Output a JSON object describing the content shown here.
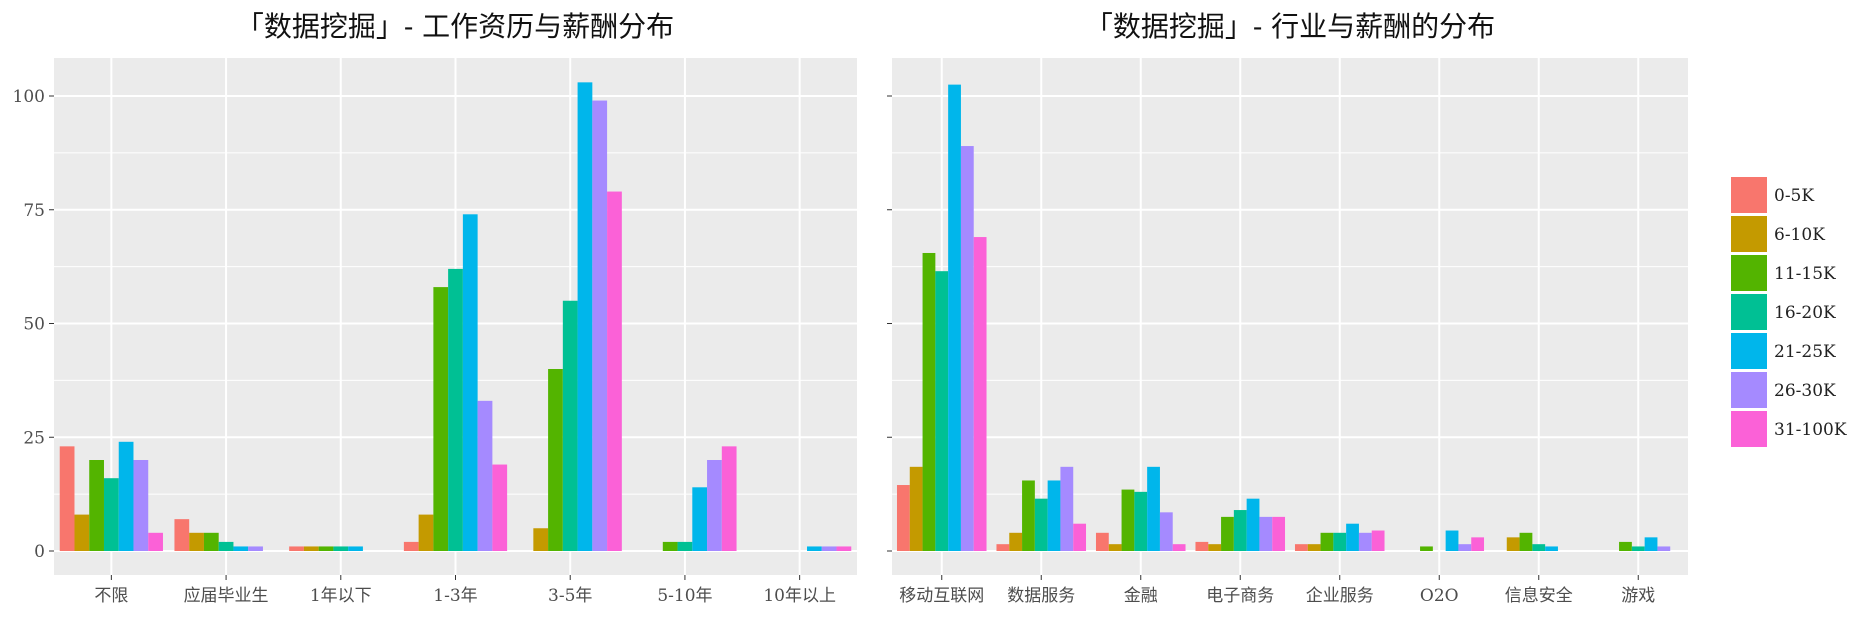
{
  "chart_data": [
    {
      "type": "bar",
      "title": "「数据挖掘」- 工作资历与薪酬分布",
      "xlabel": "",
      "ylabel": "",
      "ylim": [
        0,
        107
      ],
      "yticks": [
        0,
        25,
        50,
        75,
        100
      ],
      "grid": true,
      "categories": [
        "不限",
        "应届毕业生",
        "1年以下",
        "1-3年",
        "3-5年",
        "5-10年",
        "10年以上"
      ],
      "series": [
        {
          "name": "0-5K",
          "values": [
            23,
            7,
            1,
            2,
            0,
            0,
            0
          ]
        },
        {
          "name": "6-10K",
          "values": [
            8,
            4,
            1,
            8,
            5,
            0,
            0
          ]
        },
        {
          "name": "11-15K",
          "values": [
            20,
            4,
            1,
            58,
            40,
            2,
            0
          ]
        },
        {
          "name": "16-20K",
          "values": [
            16,
            2,
            1,
            62,
            55,
            2,
            0
          ]
        },
        {
          "name": "21-25K",
          "values": [
            24,
            1,
            1,
            74,
            103,
            14,
            1
          ]
        },
        {
          "name": "26-30K",
          "values": [
            20,
            1,
            0,
            33,
            99,
            20,
            1
          ]
        },
        {
          "name": "31-100K",
          "values": [
            4,
            0,
            0,
            19,
            79,
            23,
            1
          ]
        }
      ]
    },
    {
      "type": "bar",
      "title": "「数据挖掘」- 行业与薪酬的分布",
      "xlabel": "",
      "ylabel": "",
      "ylim": [
        0,
        107
      ],
      "grid": true,
      "categories": [
        "移动互联网",
        "数据服务",
        "金融",
        "电子商务",
        "企业服务",
        "O2O",
        "信息安全",
        "游戏"
      ],
      "series": [
        {
          "name": "0-5K",
          "values": [
            14.5,
            1.5,
            4,
            2,
            1.5,
            0,
            0,
            0
          ]
        },
        {
          "name": "6-10K",
          "values": [
            18.5,
            4,
            1.5,
            1.5,
            1.5,
            0,
            3,
            0
          ]
        },
        {
          "name": "11-15K",
          "values": [
            65.5,
            15.5,
            13.5,
            7.5,
            4,
            1,
            4,
            2
          ]
        },
        {
          "name": "16-20K",
          "values": [
            61.5,
            11.5,
            13,
            9,
            4,
            0,
            1.5,
            1
          ]
        },
        {
          "name": "21-25K",
          "values": [
            102.5,
            15.5,
            18.5,
            11.5,
            6,
            4.5,
            1,
            3
          ]
        },
        {
          "name": "26-30K",
          "values": [
            89,
            18.5,
            8.5,
            7.5,
            4,
            1.5,
            0,
            1
          ]
        },
        {
          "name": "31-100K",
          "values": [
            69,
            6,
            1.5,
            7.5,
            4.5,
            3,
            0,
            0
          ]
        }
      ]
    }
  ],
  "legend": {
    "placement": "right",
    "items": [
      "0-5K",
      "6-10K",
      "11-15K",
      "16-20K",
      "21-25K",
      "26-30K",
      "31-100K"
    ]
  },
  "colors": [
    "#F8766D",
    "#C49A00",
    "#53B400",
    "#00C094",
    "#00B6EB",
    "#A58AFF",
    "#FB61D7"
  ],
  "panel_bg": "#EBEBEB",
  "grid_color": "#FFFFFF"
}
